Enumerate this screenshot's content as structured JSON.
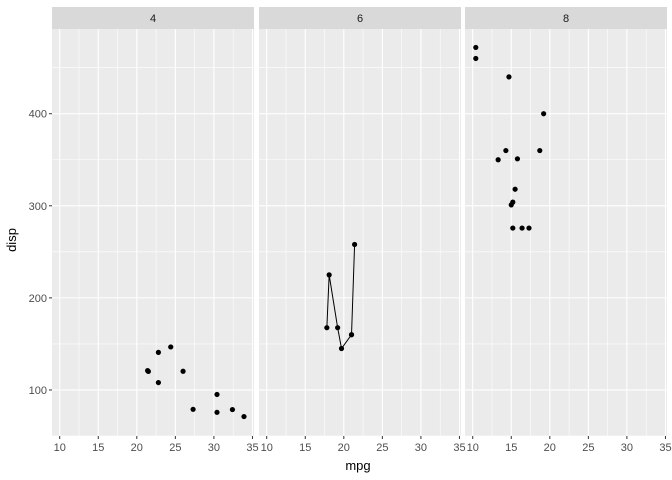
{
  "chart_data": {
    "type": "scatter",
    "xlabel": "mpg",
    "ylabel": "disp",
    "xlim": [
      9,
      35.2
    ],
    "ylim": [
      50,
      492
    ],
    "x_ticks": [
      10,
      15,
      20,
      25,
      30,
      35
    ],
    "y_ticks": [
      100,
      200,
      300,
      400
    ],
    "grid": true,
    "legend": "none",
    "colors": {
      "panel_bg": "#ebebeb",
      "strip_bg": "#d9d9d9",
      "grid": "#ffffff",
      "point": "#000000",
      "line": "#000000"
    },
    "facets": [
      {
        "label": "4",
        "points": [
          {
            "x": 22.8,
            "y": 108.0
          },
          {
            "x": 24.4,
            "y": 146.7
          },
          {
            "x": 22.8,
            "y": 140.8
          },
          {
            "x": 32.4,
            "y": 78.7
          },
          {
            "x": 30.4,
            "y": 75.7
          },
          {
            "x": 33.9,
            "y": 71.1
          },
          {
            "x": 21.5,
            "y": 120.1
          },
          {
            "x": 27.3,
            "y": 79.0
          },
          {
            "x": 26.0,
            "y": 120.3
          },
          {
            "x": 30.4,
            "y": 95.1
          },
          {
            "x": 21.4,
            "y": 121.0
          }
        ],
        "line": []
      },
      {
        "label": "6",
        "points": [
          {
            "x": 21.0,
            "y": 160.0
          },
          {
            "x": 21.0,
            "y": 160.0
          },
          {
            "x": 21.4,
            "y": 258.0
          },
          {
            "x": 18.1,
            "y": 225.0
          },
          {
            "x": 19.2,
            "y": 167.6
          },
          {
            "x": 17.8,
            "y": 167.6
          },
          {
            "x": 19.7,
            "y": 145.0
          }
        ],
        "line": [
          {
            "x": 17.8,
            "y": 167.6
          },
          {
            "x": 18.1,
            "y": 225.0
          },
          {
            "x": 19.2,
            "y": 167.6
          },
          {
            "x": 19.7,
            "y": 145.0
          },
          {
            "x": 21.0,
            "y": 160.0
          },
          {
            "x": 21.4,
            "y": 258.0
          }
        ]
      },
      {
        "label": "8",
        "points": [
          {
            "x": 18.7,
            "y": 360.0
          },
          {
            "x": 14.3,
            "y": 360.0
          },
          {
            "x": 16.4,
            "y": 275.8
          },
          {
            "x": 17.3,
            "y": 275.8
          },
          {
            "x": 15.2,
            "y": 275.8
          },
          {
            "x": 10.4,
            "y": 472.0
          },
          {
            "x": 10.4,
            "y": 460.0
          },
          {
            "x": 14.7,
            "y": 440.0
          },
          {
            "x": 15.5,
            "y": 318.0
          },
          {
            "x": 15.2,
            "y": 304.0
          },
          {
            "x": 13.3,
            "y": 350.0
          },
          {
            "x": 19.2,
            "y": 400.0
          },
          {
            "x": 15.8,
            "y": 351.0
          },
          {
            "x": 15.0,
            "y": 301.0
          }
        ],
        "line": []
      }
    ]
  }
}
